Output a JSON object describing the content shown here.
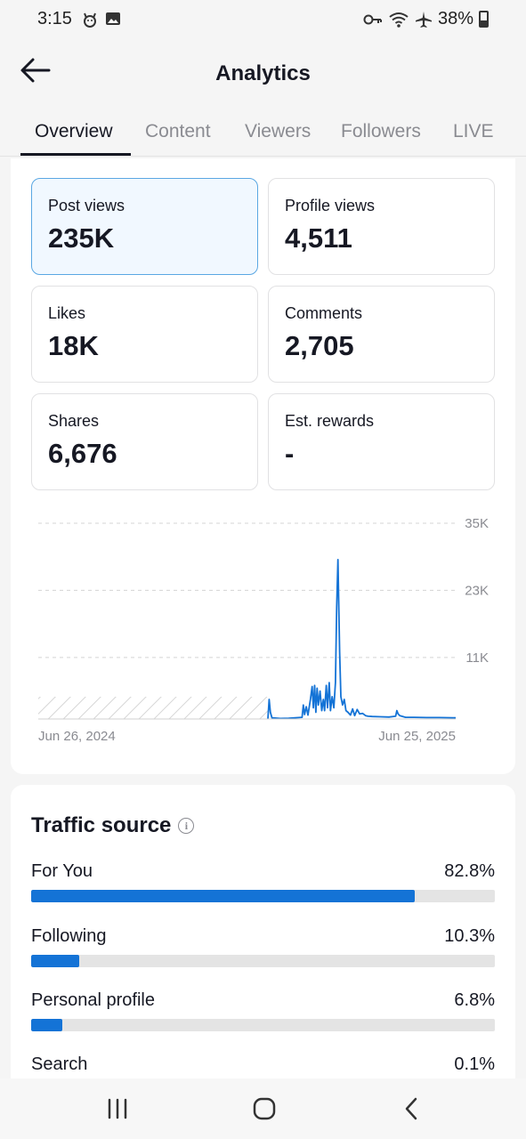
{
  "status_bar": {
    "time": "3:15",
    "battery": "38%",
    "icons": [
      "notification-cat-icon",
      "image-icon",
      "key-icon",
      "wifi-icon",
      "airplane-icon",
      "battery-icon"
    ]
  },
  "header": {
    "title": "Analytics",
    "back_icon": "arrow-left-icon"
  },
  "tabs": [
    {
      "label": "Overview",
      "active": true
    },
    {
      "label": "Content",
      "active": false
    },
    {
      "label": "Viewers",
      "active": false
    },
    {
      "label": "Followers",
      "active": false
    },
    {
      "label": "LIVE",
      "active": false
    }
  ],
  "stats": [
    {
      "label": "Post views",
      "value": "235K",
      "selected": true
    },
    {
      "label": "Profile views",
      "value": "4,511",
      "selected": false
    },
    {
      "label": "Likes",
      "value": "18K",
      "selected": false
    },
    {
      "label": "Comments",
      "value": "2,705",
      "selected": false
    },
    {
      "label": "Shares",
      "value": "6,676",
      "selected": false
    },
    {
      "label": "Est. rewards",
      "value": "-",
      "selected": false
    }
  ],
  "chart_data": {
    "type": "line",
    "x_start_label": "Jun 26, 2024",
    "x_end_label": "Jun 25, 2025",
    "y_tick_labels": [
      "35K",
      "23K",
      "11K"
    ],
    "y_ticks": [
      35000,
      23000,
      11000
    ],
    "ylim": [
      0,
      35000
    ],
    "no_data_until_fraction": 0.55,
    "series": [
      {
        "color": "#1473d6",
        "points": [
          [
            0.55,
            0
          ],
          [
            0.553,
            3500
          ],
          [
            0.556,
            1200
          ],
          [
            0.56,
            200
          ],
          [
            0.58,
            100
          ],
          [
            0.6,
            150
          ],
          [
            0.632,
            300
          ],
          [
            0.635,
            2500
          ],
          [
            0.638,
            800
          ],
          [
            0.642,
            2200
          ],
          [
            0.646,
            700
          ],
          [
            0.652,
            3500
          ],
          [
            0.656,
            5800
          ],
          [
            0.659,
            2000
          ],
          [
            0.662,
            6000
          ],
          [
            0.665,
            1200
          ],
          [
            0.668,
            5500
          ],
          [
            0.671,
            2500
          ],
          [
            0.675,
            5000
          ],
          [
            0.679,
            1500
          ],
          [
            0.683,
            3500
          ],
          [
            0.686,
            1500
          ],
          [
            0.69,
            6000
          ],
          [
            0.693,
            2000
          ],
          [
            0.697,
            6500
          ],
          [
            0.7,
            1500
          ],
          [
            0.704,
            4000
          ],
          [
            0.708,
            2000
          ],
          [
            0.712,
            6500
          ],
          [
            0.715,
            20000
          ],
          [
            0.718,
            28500
          ],
          [
            0.722,
            12000
          ],
          [
            0.725,
            4000
          ],
          [
            0.729,
            2500
          ],
          [
            0.733,
            3500
          ],
          [
            0.737,
            1500
          ],
          [
            0.742,
            1200
          ],
          [
            0.748,
            700
          ],
          [
            0.753,
            1800
          ],
          [
            0.758,
            600
          ],
          [
            0.764,
            1700
          ],
          [
            0.77,
            900
          ],
          [
            0.777,
            1000
          ],
          [
            0.784,
            600
          ],
          [
            0.79,
            500
          ],
          [
            0.8,
            450
          ],
          [
            0.82,
            400
          ],
          [
            0.84,
            350
          ],
          [
            0.856,
            500
          ],
          [
            0.859,
            1500
          ],
          [
            0.862,
            900
          ],
          [
            0.866,
            600
          ],
          [
            0.88,
            300
          ],
          [
            0.9,
            300
          ],
          [
            0.93,
            250
          ],
          [
            0.96,
            250
          ],
          [
            1.0,
            200
          ]
        ]
      }
    ]
  },
  "traffic_source": {
    "title": "Traffic source",
    "rows": [
      {
        "label": "For You",
        "value": "82.8%",
        "fraction": 0.828
      },
      {
        "label": "Following",
        "value": "10.3%",
        "fraction": 0.103
      },
      {
        "label": "Personal profile",
        "value": "6.8%",
        "fraction": 0.068
      },
      {
        "label": "Search",
        "value": "0.1%",
        "fraction": 0.001
      }
    ]
  },
  "nav_bar": {
    "icons": [
      "recent-apps-icon",
      "home-icon",
      "back-icon"
    ]
  }
}
